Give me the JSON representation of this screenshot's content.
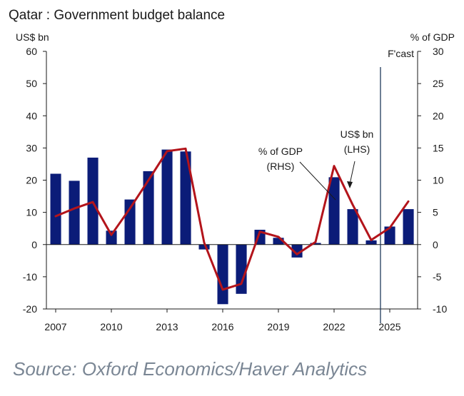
{
  "colors": {
    "bar": "#0b1c78",
    "line": "#b3141b",
    "axis": "#1a1a1a",
    "source": "#7a8694"
  },
  "source": "Source: Oxford Economics/Haver Analytics",
  "chart_data": {
    "type": "bar",
    "title": "Qatar : Government budget balance",
    "left_axis_label": "US$ bn",
    "right_axis_label": "% of GDP",
    "forecast_label": "F'cast",
    "forecast_start_year": 2024.5,
    "years": [
      2007,
      2008,
      2009,
      2010,
      2011,
      2012,
      2013,
      2014,
      2015,
      2016,
      2017,
      2018,
      2019,
      2020,
      2021,
      2022,
      2023,
      2024,
      2025,
      2026
    ],
    "x_tick_labels": [
      "2007",
      "2010",
      "2013",
      "2016",
      "2019",
      "2022",
      "2025"
    ],
    "left_ylim": [
      -20,
      60
    ],
    "left_ticks": [
      "-20",
      "-10",
      "0",
      "10",
      "20",
      "30",
      "40",
      "50",
      "60"
    ],
    "right_ylim": [
      -10,
      30
    ],
    "right_ticks": [
      "-10",
      "-5",
      "0",
      "5",
      "10",
      "15",
      "20",
      "25",
      "30"
    ],
    "series": [
      {
        "name": "US$ bn (LHS)",
        "type": "bar",
        "axis": "left",
        "values": [
          22.0,
          19.8,
          27.0,
          4.3,
          14.0,
          22.8,
          29.5,
          28.9,
          -1.5,
          -18.5,
          -15.3,
          4.6,
          2.1,
          -4.0,
          0.5,
          20.9,
          11.0,
          1.3,
          5.6,
          11.0
        ]
      },
      {
        "name": "% of GDP (RHS)",
        "type": "line",
        "axis": "right",
        "values": [
          4.4,
          5.6,
          6.6,
          1.5,
          5.6,
          10.0,
          14.5,
          14.9,
          0.3,
          -7.0,
          -6.1,
          2.0,
          1.2,
          -1.5,
          0.4,
          12.2,
          6.2,
          0.7,
          2.6,
          6.7
        ]
      }
    ],
    "annotations": {
      "pct_label_line1": "% of GDP",
      "pct_label_line2": "(RHS)",
      "usd_label_line1": "US$ bn",
      "usd_label_line2": "(LHS)"
    },
    "grid": false
  }
}
